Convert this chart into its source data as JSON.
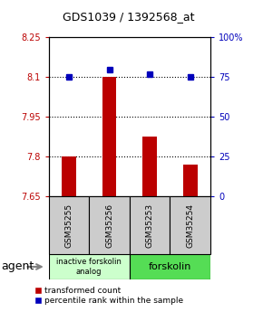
{
  "title": "GDS1039 / 1392568_at",
  "samples": [
    "GSM35255",
    "GSM35256",
    "GSM35253",
    "GSM35254"
  ],
  "bar_values": [
    7.8,
    8.1,
    7.875,
    7.77
  ],
  "bar_base": 7.65,
  "percentile_values": [
    75,
    80,
    77,
    75
  ],
  "bar_color": "#bb0000",
  "dot_color": "#0000bb",
  "ylim_left": [
    7.65,
    8.25
  ],
  "ylim_right": [
    0,
    100
  ],
  "yticks_left": [
    7.65,
    7.8,
    7.95,
    8.1,
    8.25
  ],
  "ytick_labels_left": [
    "7.65",
    "7.8",
    "7.95",
    "8.1",
    "8.25"
  ],
  "yticks_right": [
    0,
    25,
    50,
    75,
    100
  ],
  "ytick_labels_right": [
    "0",
    "25",
    "50",
    "75",
    "100%"
  ],
  "hlines": [
    7.8,
    7.95,
    8.1
  ],
  "group1_label": "inactive forskolin\nanalog",
  "group2_label": "forskolin",
  "group1_indices": [
    0,
    1
  ],
  "group2_indices": [
    2,
    3
  ],
  "agent_label": "agent",
  "legend_red": "transformed count",
  "legend_blue": "percentile rank within the sample",
  "plot_bg": "#ffffff",
  "group1_color": "#ccffcc",
  "group2_color": "#55dd55",
  "sample_box_color": "#cccccc"
}
